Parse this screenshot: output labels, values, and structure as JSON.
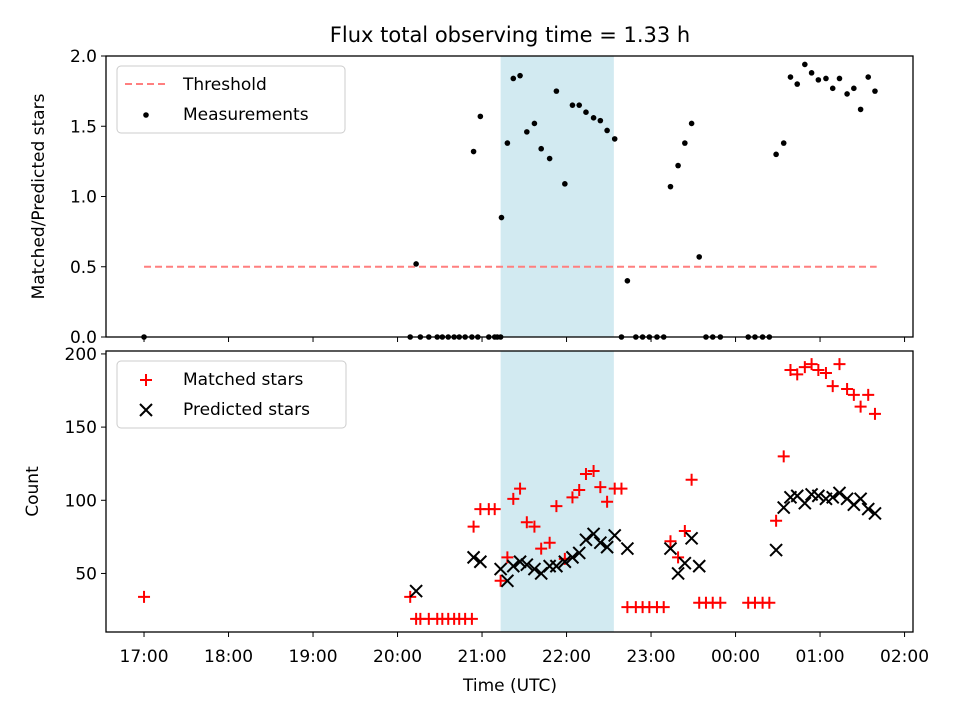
{
  "chart_data": {
    "title": "Flux total observing time = 1.33 h",
    "xlabel": "Time (UTC)",
    "x_unit": "hours since 17:00 UTC",
    "xlim": [
      -0.45,
      9.1
    ],
    "x_ticks": [
      {
        "v": 0,
        "label": "17:00"
      },
      {
        "v": 1,
        "label": "18:00"
      },
      {
        "v": 2,
        "label": "19:00"
      },
      {
        "v": 3,
        "label": "20:00"
      },
      {
        "v": 4,
        "label": "21:00"
      },
      {
        "v": 5,
        "label": "22:00"
      },
      {
        "v": 6,
        "label": "23:00"
      },
      {
        "v": 7,
        "label": "00:00"
      },
      {
        "v": 8,
        "label": "01:00"
      },
      {
        "v": 9,
        "label": "02:00"
      }
    ],
    "highlight_span": {
      "x0": 4.22,
      "x1": 5.56,
      "color": "#add8e6"
    },
    "panels": [
      {
        "id": "ratio",
        "type": "scatter",
        "ylabel": "Matched/Predicted stars",
        "ylim": [
          0,
          2.0
        ],
        "yticks": [
          0.0,
          0.5,
          1.0,
          1.5,
          2.0
        ],
        "ytick_labels": [
          "0.0",
          "0.5",
          "1.0",
          "1.5",
          "2.0"
        ],
        "legend": {
          "position": "upper-left",
          "entries": [
            "Threshold",
            "Measurements"
          ]
        },
        "threshold": {
          "name": "Threshold",
          "y": 0.5,
          "x0": 0.0,
          "x1": 8.67,
          "color": "#ff7f7f",
          "style": "dashed"
        },
        "series": [
          {
            "name": "Measurements",
            "color": "#000000",
            "marker": "dot",
            "points": [
              [
                0.0,
                0.0
              ],
              [
                3.15,
                0.0
              ],
              [
                3.27,
                0.0
              ],
              [
                3.37,
                0.0
              ],
              [
                3.47,
                0.0
              ],
              [
                3.53,
                0.0
              ],
              [
                3.6,
                0.0
              ],
              [
                3.67,
                0.0
              ],
              [
                3.73,
                0.0
              ],
              [
                3.8,
                0.0
              ],
              [
                3.88,
                0.0
              ],
              [
                3.95,
                0.0
              ],
              [
                4.08,
                0.0
              ],
              [
                4.15,
                0.0
              ],
              [
                4.18,
                0.0
              ],
              [
                4.22,
                0.0
              ],
              [
                3.22,
                0.52
              ],
              [
                3.9,
                1.32
              ],
              [
                3.98,
                1.57
              ],
              [
                4.23,
                0.85
              ],
              [
                4.3,
                1.38
              ],
              [
                4.37,
                1.84
              ],
              [
                4.45,
                1.86
              ],
              [
                4.53,
                1.46
              ],
              [
                4.62,
                1.52
              ],
              [
                4.7,
                1.34
              ],
              [
                4.8,
                1.27
              ],
              [
                4.88,
                1.75
              ],
              [
                4.98,
                1.09
              ],
              [
                5.07,
                1.65
              ],
              [
                5.15,
                1.65
              ],
              [
                5.23,
                1.6
              ],
              [
                5.32,
                1.56
              ],
              [
                5.4,
                1.54
              ],
              [
                5.48,
                1.47
              ],
              [
                5.57,
                1.41
              ],
              [
                5.65,
                0.0
              ],
              [
                5.72,
                0.4
              ],
              [
                5.82,
                0.0
              ],
              [
                5.9,
                0.0
              ],
              [
                5.98,
                0.0
              ],
              [
                6.07,
                0.0
              ],
              [
                6.15,
                0.0
              ],
              [
                6.23,
                1.07
              ],
              [
                6.32,
                1.22
              ],
              [
                6.4,
                1.38
              ],
              [
                6.48,
                1.52
              ],
              [
                6.57,
                0.57
              ],
              [
                6.65,
                0.0
              ],
              [
                6.73,
                0.0
              ],
              [
                6.82,
                0.0
              ],
              [
                7.15,
                0.0
              ],
              [
                7.23,
                0.0
              ],
              [
                7.32,
                0.0
              ],
              [
                7.4,
                0.0
              ],
              [
                7.48,
                1.3
              ],
              [
                7.57,
                1.38
              ],
              [
                7.65,
                1.85
              ],
              [
                7.73,
                1.8
              ],
              [
                7.82,
                1.94
              ],
              [
                7.9,
                1.88
              ],
              [
                7.98,
                1.83
              ],
              [
                8.07,
                1.84
              ],
              [
                8.15,
                1.77
              ],
              [
                8.23,
                1.84
              ],
              [
                8.32,
                1.73
              ],
              [
                8.4,
                1.77
              ],
              [
                8.48,
                1.62
              ],
              [
                8.57,
                1.85
              ],
              [
                8.65,
                1.75
              ]
            ]
          }
        ]
      },
      {
        "id": "count",
        "type": "scatter",
        "ylabel": "Count",
        "ylim": [
          10,
          202
        ],
        "yticks": [
          50,
          100,
          150,
          200
        ],
        "ytick_labels": [
          "50",
          "100",
          "150",
          "200"
        ],
        "legend": {
          "position": "upper-left",
          "entries": [
            "Matched stars",
            "Predicted stars"
          ]
        },
        "series": [
          {
            "name": "Matched stars",
            "color": "#ff0000",
            "marker": "plus",
            "points": [
              [
                0.0,
                34
              ],
              [
                3.15,
                34
              ],
              [
                3.22,
                19
              ],
              [
                3.27,
                19
              ],
              [
                3.37,
                19
              ],
              [
                3.47,
                19
              ],
              [
                3.53,
                19
              ],
              [
                3.6,
                19
              ],
              [
                3.67,
                19
              ],
              [
                3.73,
                19
              ],
              [
                3.8,
                19
              ],
              [
                3.88,
                19
              ],
              [
                3.9,
                82
              ],
              [
                3.98,
                94
              ],
              [
                4.08,
                94
              ],
              [
                4.15,
                94
              ],
              [
                4.22,
                45
              ],
              [
                4.3,
                61
              ],
              [
                4.37,
                101
              ],
              [
                4.45,
                108
              ],
              [
                4.53,
                85
              ],
              [
                4.62,
                82
              ],
              [
                4.7,
                67
              ],
              [
                4.8,
                71
              ],
              [
                4.88,
                96
              ],
              [
                4.98,
                60
              ],
              [
                5.07,
                102
              ],
              [
                5.15,
                107
              ],
              [
                5.23,
                118
              ],
              [
                5.32,
                120
              ],
              [
                5.4,
                109
              ],
              [
                5.48,
                99
              ],
              [
                5.57,
                108
              ],
              [
                5.65,
                108
              ],
              [
                5.72,
                27
              ],
              [
                5.82,
                27
              ],
              [
                5.9,
                27
              ],
              [
                5.98,
                27
              ],
              [
                6.07,
                27
              ],
              [
                6.15,
                27
              ],
              [
                6.23,
                72
              ],
              [
                6.32,
                61
              ],
              [
                6.4,
                79
              ],
              [
                6.48,
                114
              ],
              [
                6.57,
                30
              ],
              [
                6.65,
                30
              ],
              [
                6.73,
                30
              ],
              [
                6.82,
                30
              ],
              [
                7.15,
                30
              ],
              [
                7.23,
                30
              ],
              [
                7.32,
                30
              ],
              [
                7.4,
                30
              ],
              [
                7.48,
                86
              ],
              [
                7.57,
                130
              ],
              [
                7.65,
                189
              ],
              [
                7.73,
                186
              ],
              [
                7.82,
                191
              ],
              [
                7.9,
                193
              ],
              [
                7.98,
                189
              ],
              [
                8.07,
                187
              ],
              [
                8.15,
                178
              ],
              [
                8.23,
                193
              ],
              [
                8.32,
                176
              ],
              [
                8.4,
                172
              ],
              [
                8.48,
                164
              ],
              [
                8.57,
                172
              ],
              [
                8.65,
                159
              ]
            ]
          },
          {
            "name": "Predicted stars",
            "color": "#000000",
            "marker": "x",
            "points": [
              [
                3.22,
                38
              ],
              [
                3.9,
                61
              ],
              [
                3.98,
                58
              ],
              [
                4.22,
                53
              ],
              [
                4.3,
                45
              ],
              [
                4.37,
                55
              ],
              [
                4.45,
                58
              ],
              [
                4.53,
                56
              ],
              [
                4.62,
                53
              ],
              [
                4.7,
                50
              ],
              [
                4.8,
                55
              ],
              [
                4.88,
                55
              ],
              [
                4.98,
                58
              ],
              [
                5.07,
                61
              ],
              [
                5.15,
                64
              ],
              [
                5.23,
                73
              ],
              [
                5.32,
                77
              ],
              [
                5.4,
                71
              ],
              [
                5.48,
                68
              ],
              [
                5.57,
                76
              ],
              [
                5.72,
                67
              ],
              [
                6.23,
                67
              ],
              [
                6.32,
                50
              ],
              [
                6.4,
                57
              ],
              [
                6.48,
                74
              ],
              [
                6.57,
                55
              ],
              [
                7.48,
                66
              ],
              [
                7.57,
                95
              ],
              [
                7.65,
                102
              ],
              [
                7.73,
                103
              ],
              [
                7.82,
                98
              ],
              [
                7.9,
                104
              ],
              [
                7.98,
                103
              ],
              [
                8.07,
                101
              ],
              [
                8.15,
                102
              ],
              [
                8.23,
                105
              ],
              [
                8.32,
                101
              ],
              [
                8.4,
                97
              ],
              [
                8.48,
                101
              ],
              [
                8.57,
                94
              ],
              [
                8.65,
                91
              ]
            ]
          }
        ]
      }
    ]
  }
}
